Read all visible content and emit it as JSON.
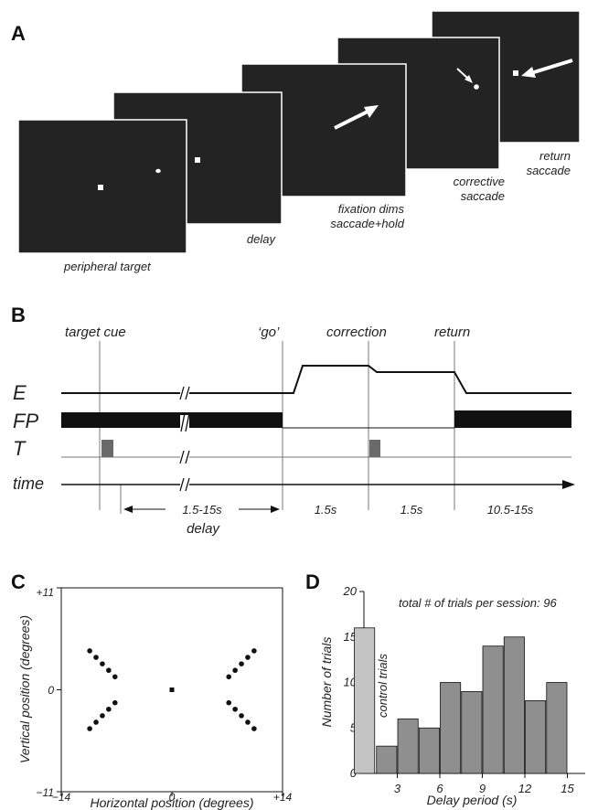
{
  "panels": {
    "a": "A",
    "b": "B",
    "c": "C",
    "d": "D"
  },
  "panel_a": {
    "screens": [
      {
        "caption": [
          "peripheral target"
        ]
      },
      {
        "caption": [
          "delay"
        ]
      },
      {
        "caption": [
          "fixation dims",
          "saccade+hold"
        ]
      },
      {
        "caption": [
          "corrective",
          "saccade"
        ]
      },
      {
        "caption": [
          "return",
          "saccade"
        ]
      }
    ]
  },
  "panel_b": {
    "events": [
      "target cue",
      "‘go’",
      "correction",
      "return"
    ],
    "rows": [
      "E",
      "FP",
      "T",
      "time"
    ],
    "durations": [
      "1.5-15s",
      "1.5s",
      "1.5s",
      "10.5-15s"
    ],
    "delay_label": "delay"
  },
  "panel_c": {
    "x_label": "Horizontal position (degrees)",
    "y_label": "Vertical position (degrees)",
    "x_ticks": [
      "−14",
      "0",
      "+14"
    ],
    "y_ticks": [
      "+11",
      "0",
      "−11"
    ]
  },
  "chart_data": [
    {
      "type": "scatter",
      "xlim": [
        -14,
        14
      ],
      "ylim": [
        -11,
        11
      ],
      "xlabel": "Horizontal position (degrees)",
      "ylabel": "Vertical position (degrees)",
      "fixation": [
        0,
        0
      ],
      "targets": [
        [
          -10.4,
          4.2
        ],
        [
          -9.6,
          3.5
        ],
        [
          -8.8,
          2.8
        ],
        [
          -8.0,
          2.1
        ],
        [
          -7.2,
          1.4
        ],
        [
          -10.4,
          -4.2
        ],
        [
          -9.6,
          -3.5
        ],
        [
          -8.8,
          -2.8
        ],
        [
          -8.0,
          -2.1
        ],
        [
          -7.2,
          -1.4
        ],
        [
          10.4,
          4.2
        ],
        [
          9.6,
          3.5
        ],
        [
          8.8,
          2.8
        ],
        [
          8.0,
          2.1
        ],
        [
          7.2,
          1.4
        ],
        [
          10.4,
          -4.2
        ],
        [
          9.6,
          -3.5
        ],
        [
          8.8,
          -2.8
        ],
        [
          8.0,
          -2.1
        ],
        [
          7.2,
          -1.4
        ]
      ]
    },
    {
      "type": "bar",
      "title": "total # of trials per session: 96",
      "xlabel": "Delay period (s)",
      "ylabel": "Number of trials",
      "ylim": [
        0,
        20
      ],
      "y_ticks": [
        0,
        5,
        10,
        15,
        20
      ],
      "x_ticks": [
        3,
        6,
        9,
        12,
        15
      ],
      "control": {
        "label": "control trials",
        "value": 16,
        "color": "#c4c4c4"
      },
      "bars": [
        {
          "x": 1.5,
          "value": 3
        },
        {
          "x": 3.0,
          "value": 6
        },
        {
          "x": 4.5,
          "value": 5
        },
        {
          "x": 6.0,
          "value": 10
        },
        {
          "x": 7.5,
          "value": 9
        },
        {
          "x": 9.0,
          "value": 14
        },
        {
          "x": 10.5,
          "value": 15
        },
        {
          "x": 12.0,
          "value": 8
        },
        {
          "x": 13.5,
          "value": 10
        }
      ],
      "bar_color": "#8f8f8f"
    }
  ]
}
